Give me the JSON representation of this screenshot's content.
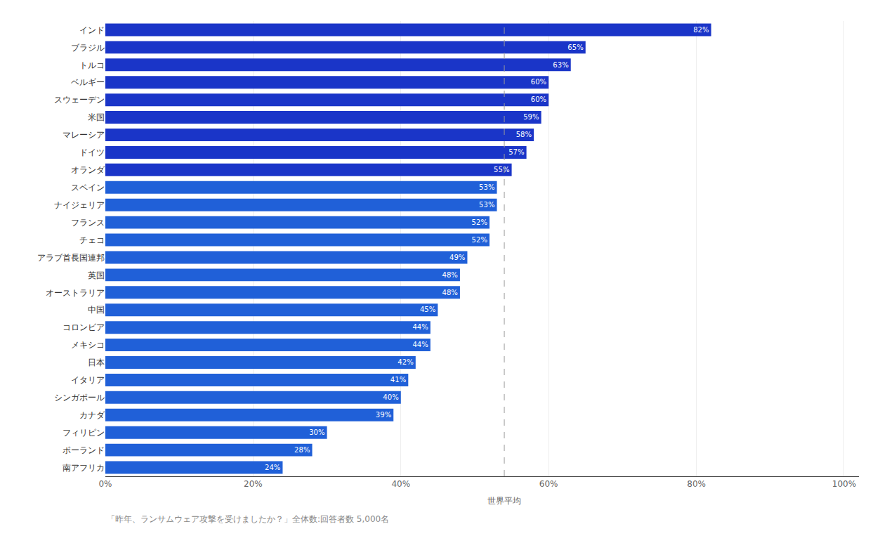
{
  "chart_data": {
    "type": "bar",
    "orientation": "horizontal",
    "categories": [
      "インド",
      "ブラジル",
      "トルコ",
      "ベルギー",
      "スウェーデン",
      "米国",
      "マレーシア",
      "ドイツ",
      "オランダ",
      "スペイン",
      "ナイジェリア",
      "フランス",
      "チェコ",
      "アラブ首長国連邦",
      "英国",
      "オーストラリア",
      "中国",
      "コロンビア",
      "メキシコ",
      "日本",
      "イタリア",
      "シンガポール",
      "カナダ",
      "フィリピン",
      "ポーランド",
      "南アフリカ"
    ],
    "values": [
      82,
      65,
      63,
      60,
      60,
      59,
      58,
      57,
      55,
      53,
      53,
      52,
      52,
      49,
      48,
      48,
      45,
      44,
      44,
      42,
      41,
      40,
      39,
      30,
      28,
      24
    ],
    "value_labels": [
      "82%",
      "65%",
      "63%",
      "60%",
      "60%",
      "59%",
      "58%",
      "57%",
      "55%",
      "53%",
      "53%",
      "52%",
      "52%",
      "49%",
      "48%",
      "48%",
      "45%",
      "44%",
      "44%",
      "42%",
      "41%",
      "40%",
      "39%",
      "30%",
      "28%",
      "24%"
    ],
    "data_labels": true,
    "colors": [
      "#1a35c8",
      "#1a35c8",
      "#1a35c8",
      "#1a35c8",
      "#1a35c8",
      "#1a35c8",
      "#1a35c8",
      "#1a35c8",
      "#1a35c8",
      "#2060d8",
      "#2060d8",
      "#2060d8",
      "#2060d8",
      "#2060d8",
      "#2060d8",
      "#2060d8",
      "#2060d8",
      "#2060d8",
      "#2060d8",
      "#2060d8",
      "#2060d8",
      "#2060d8",
      "#2060d8",
      "#2060d8",
      "#2060d8",
      "#2060d8"
    ],
    "xlim": [
      0,
      102
    ],
    "xticks": [
      {
        "value": 0,
        "label": "0%"
      },
      {
        "value": 20,
        "label": "20%"
      },
      {
        "value": 40,
        "label": "40%"
      },
      {
        "value": 60,
        "label": "60%"
      },
      {
        "value": 80,
        "label": "80%"
      },
      {
        "value": 100,
        "label": "100%"
      }
    ],
    "grid": true,
    "reference_line": {
      "x": 54,
      "label": "世界平均"
    },
    "footnote": "「昨年、ランサムウェア攻撃を受けましたか？」全体数:回答者数 5,000名"
  }
}
